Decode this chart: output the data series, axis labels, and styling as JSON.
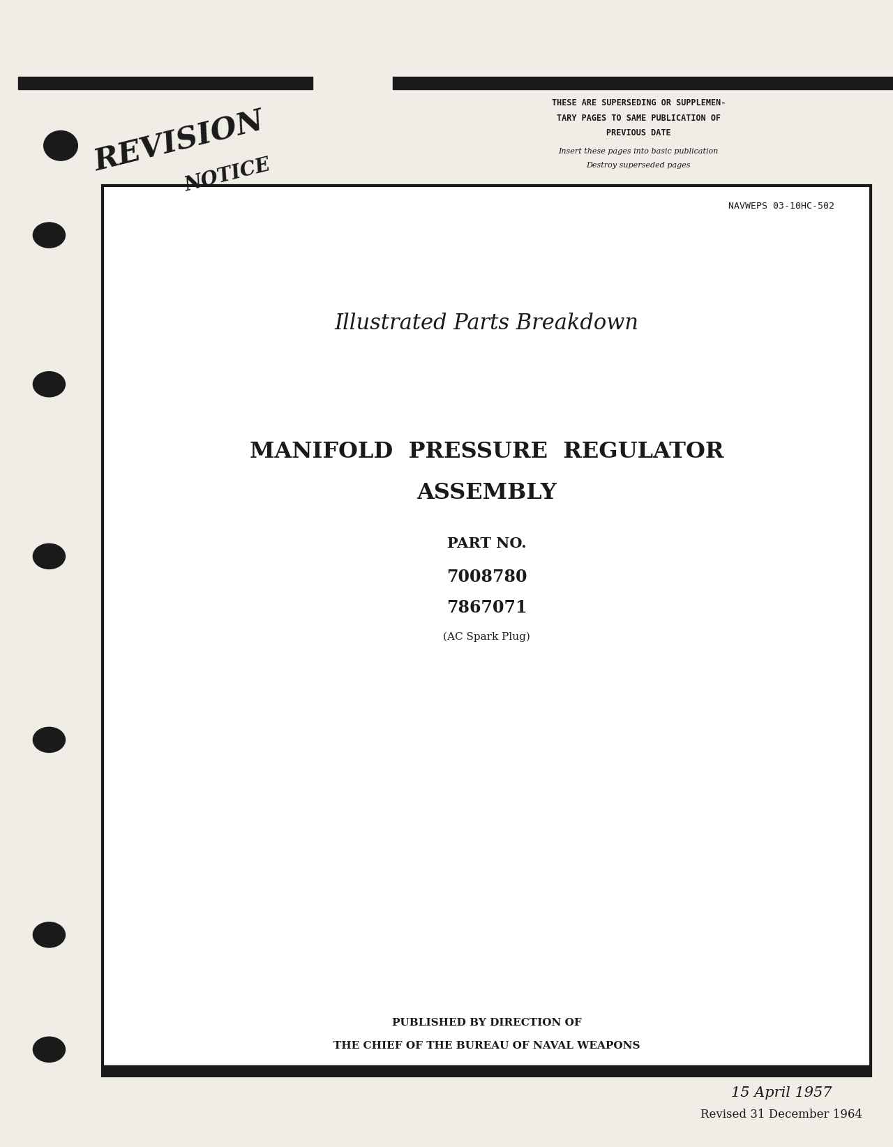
{
  "bg_color": "#f0ede6",
  "page_width": 12.8,
  "page_height": 16.44,
  "header_bar_color": "#1a1a1a",
  "border_color": "#1a1a1a",
  "text_color": "#1a1a1a",
  "navweps_text": "NAVWEPS 03-10HC-502",
  "subtitle1": "Illustrated Parts Breakdown",
  "main_title1": "MANIFOLD  PRESSURE  REGULATOR",
  "main_title2": "ASSEMBLY",
  "part_label": "PART NO.",
  "part1": "7008780",
  "part2": "7867071",
  "part_note": "(AC Spark Plug)",
  "published1": "PUBLISHED BY DIRECTION OF",
  "published2": "THE CHIEF OF THE BUREAU OF NAVAL WEAPONS",
  "date_line1": "15 April 1957",
  "date_line2": "Revised 31 December 1964",
  "revision_line1": "THESE ARE SUPERSEDING OR SUPPLEMEN-",
  "revision_line2": "TARY PAGES TO SAME PUBLICATION OF",
  "revision_line3": "PREVIOUS DATE",
  "revision_line4": "Insert these pages into basic publication",
  "revision_line5": "Destroy superseded pages",
  "revision_word": "REVISION",
  "notice_word": "NOTICE"
}
